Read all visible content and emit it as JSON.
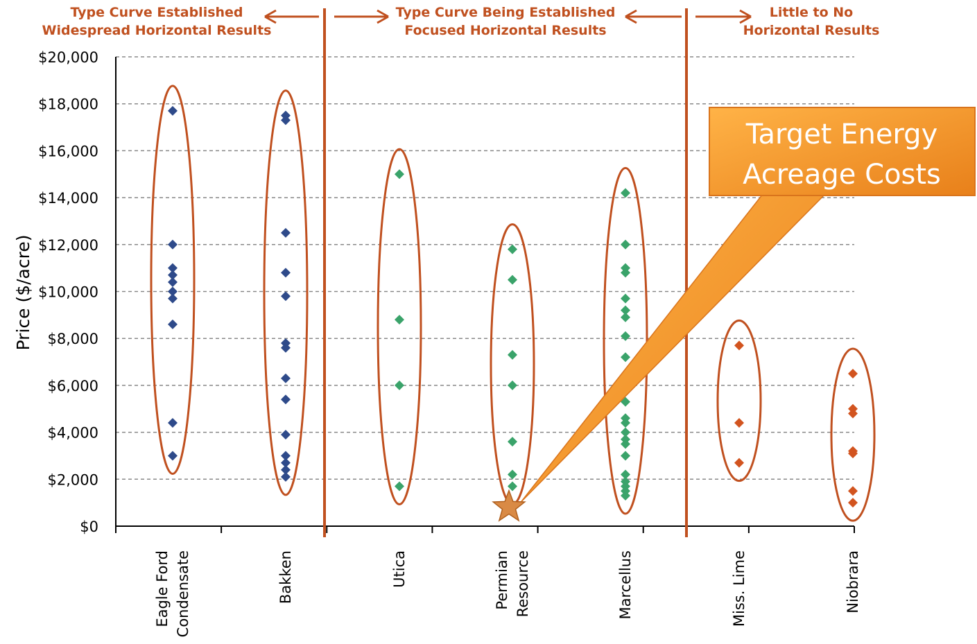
{
  "headers": [
    {
      "line1": "Type Curve Established",
      "line2": "Widespread Horizontal Results"
    },
    {
      "line1": "Type Curve Being Established",
      "line2": "Focused Horizontal Results"
    },
    {
      "line1": "Little to No",
      "line2": "Horizontal Results"
    }
  ],
  "callout": {
    "line1": "Target Energy",
    "line2": "Acreage Costs"
  },
  "chart_data": {
    "type": "scatter",
    "title": "",
    "xlabel": "",
    "ylabel": "Price ($/acre)",
    "ylim": [
      0,
      20000
    ],
    "y_ticks": [
      "$0",
      "$2,000",
      "$4,000",
      "$6,000",
      "$8,000",
      "$10,000",
      "$12,000",
      "$14,000",
      "$16,000",
      "$18,000",
      "$20,000"
    ],
    "grid": true,
    "categories": [
      {
        "label_lines": [
          "Eagle Ford",
          "Condensate"
        ],
        "group": "established",
        "color": "#2e4a8a",
        "values": [
          17700,
          12000,
          11000,
          10700,
          10400,
          10000,
          9700,
          8600,
          4400,
          3000
        ]
      },
      {
        "label_lines": [
          "Bakken"
        ],
        "group": "established",
        "color": "#2e4a8a",
        "values": [
          17500,
          17300,
          12500,
          10800,
          9800,
          7800,
          7600,
          6300,
          5400,
          3900,
          3000,
          2700,
          2400,
          2100
        ]
      },
      {
        "label_lines": [
          "Utica"
        ],
        "group": "being-established",
        "color": "#3aa36a",
        "values": [
          15000,
          8800,
          6000,
          1700
        ]
      },
      {
        "label_lines": [
          "Permian",
          "Resource"
        ],
        "group": "being-established",
        "color": "#3aa36a",
        "values": [
          11800,
          10500,
          7300,
          6000,
          3600,
          2200,
          1700
        ]
      },
      {
        "label_lines": [
          "Marcellus"
        ],
        "group": "being-established",
        "color": "#3aa36a",
        "values": [
          14200,
          12000,
          11000,
          10800,
          9700,
          9200,
          8900,
          8100,
          7200,
          5300,
          4600,
          4400,
          4000,
          3700,
          3500,
          3000,
          2200,
          1900,
          1700,
          1500,
          1300
        ]
      },
      {
        "label_lines": [
          "Miss.  Lime"
        ],
        "group": "little-to-no",
        "color": "#d2541f",
        "values": [
          7700,
          4400,
          2700
        ]
      },
      {
        "label_lines": [
          "Niobrara"
        ],
        "group": "little-to-no",
        "color": "#d2541f",
        "values": [
          6500,
          5000,
          4800,
          3200,
          3100,
          1500,
          1000
        ]
      }
    ],
    "target_marker": {
      "category_index": 3,
      "value": 900,
      "color": "#d98a45"
    },
    "colors": {
      "axis_accent": "#c0501f",
      "ellipse": "#c0501f",
      "callout": "#f59a2e",
      "grid": "#888888"
    }
  }
}
